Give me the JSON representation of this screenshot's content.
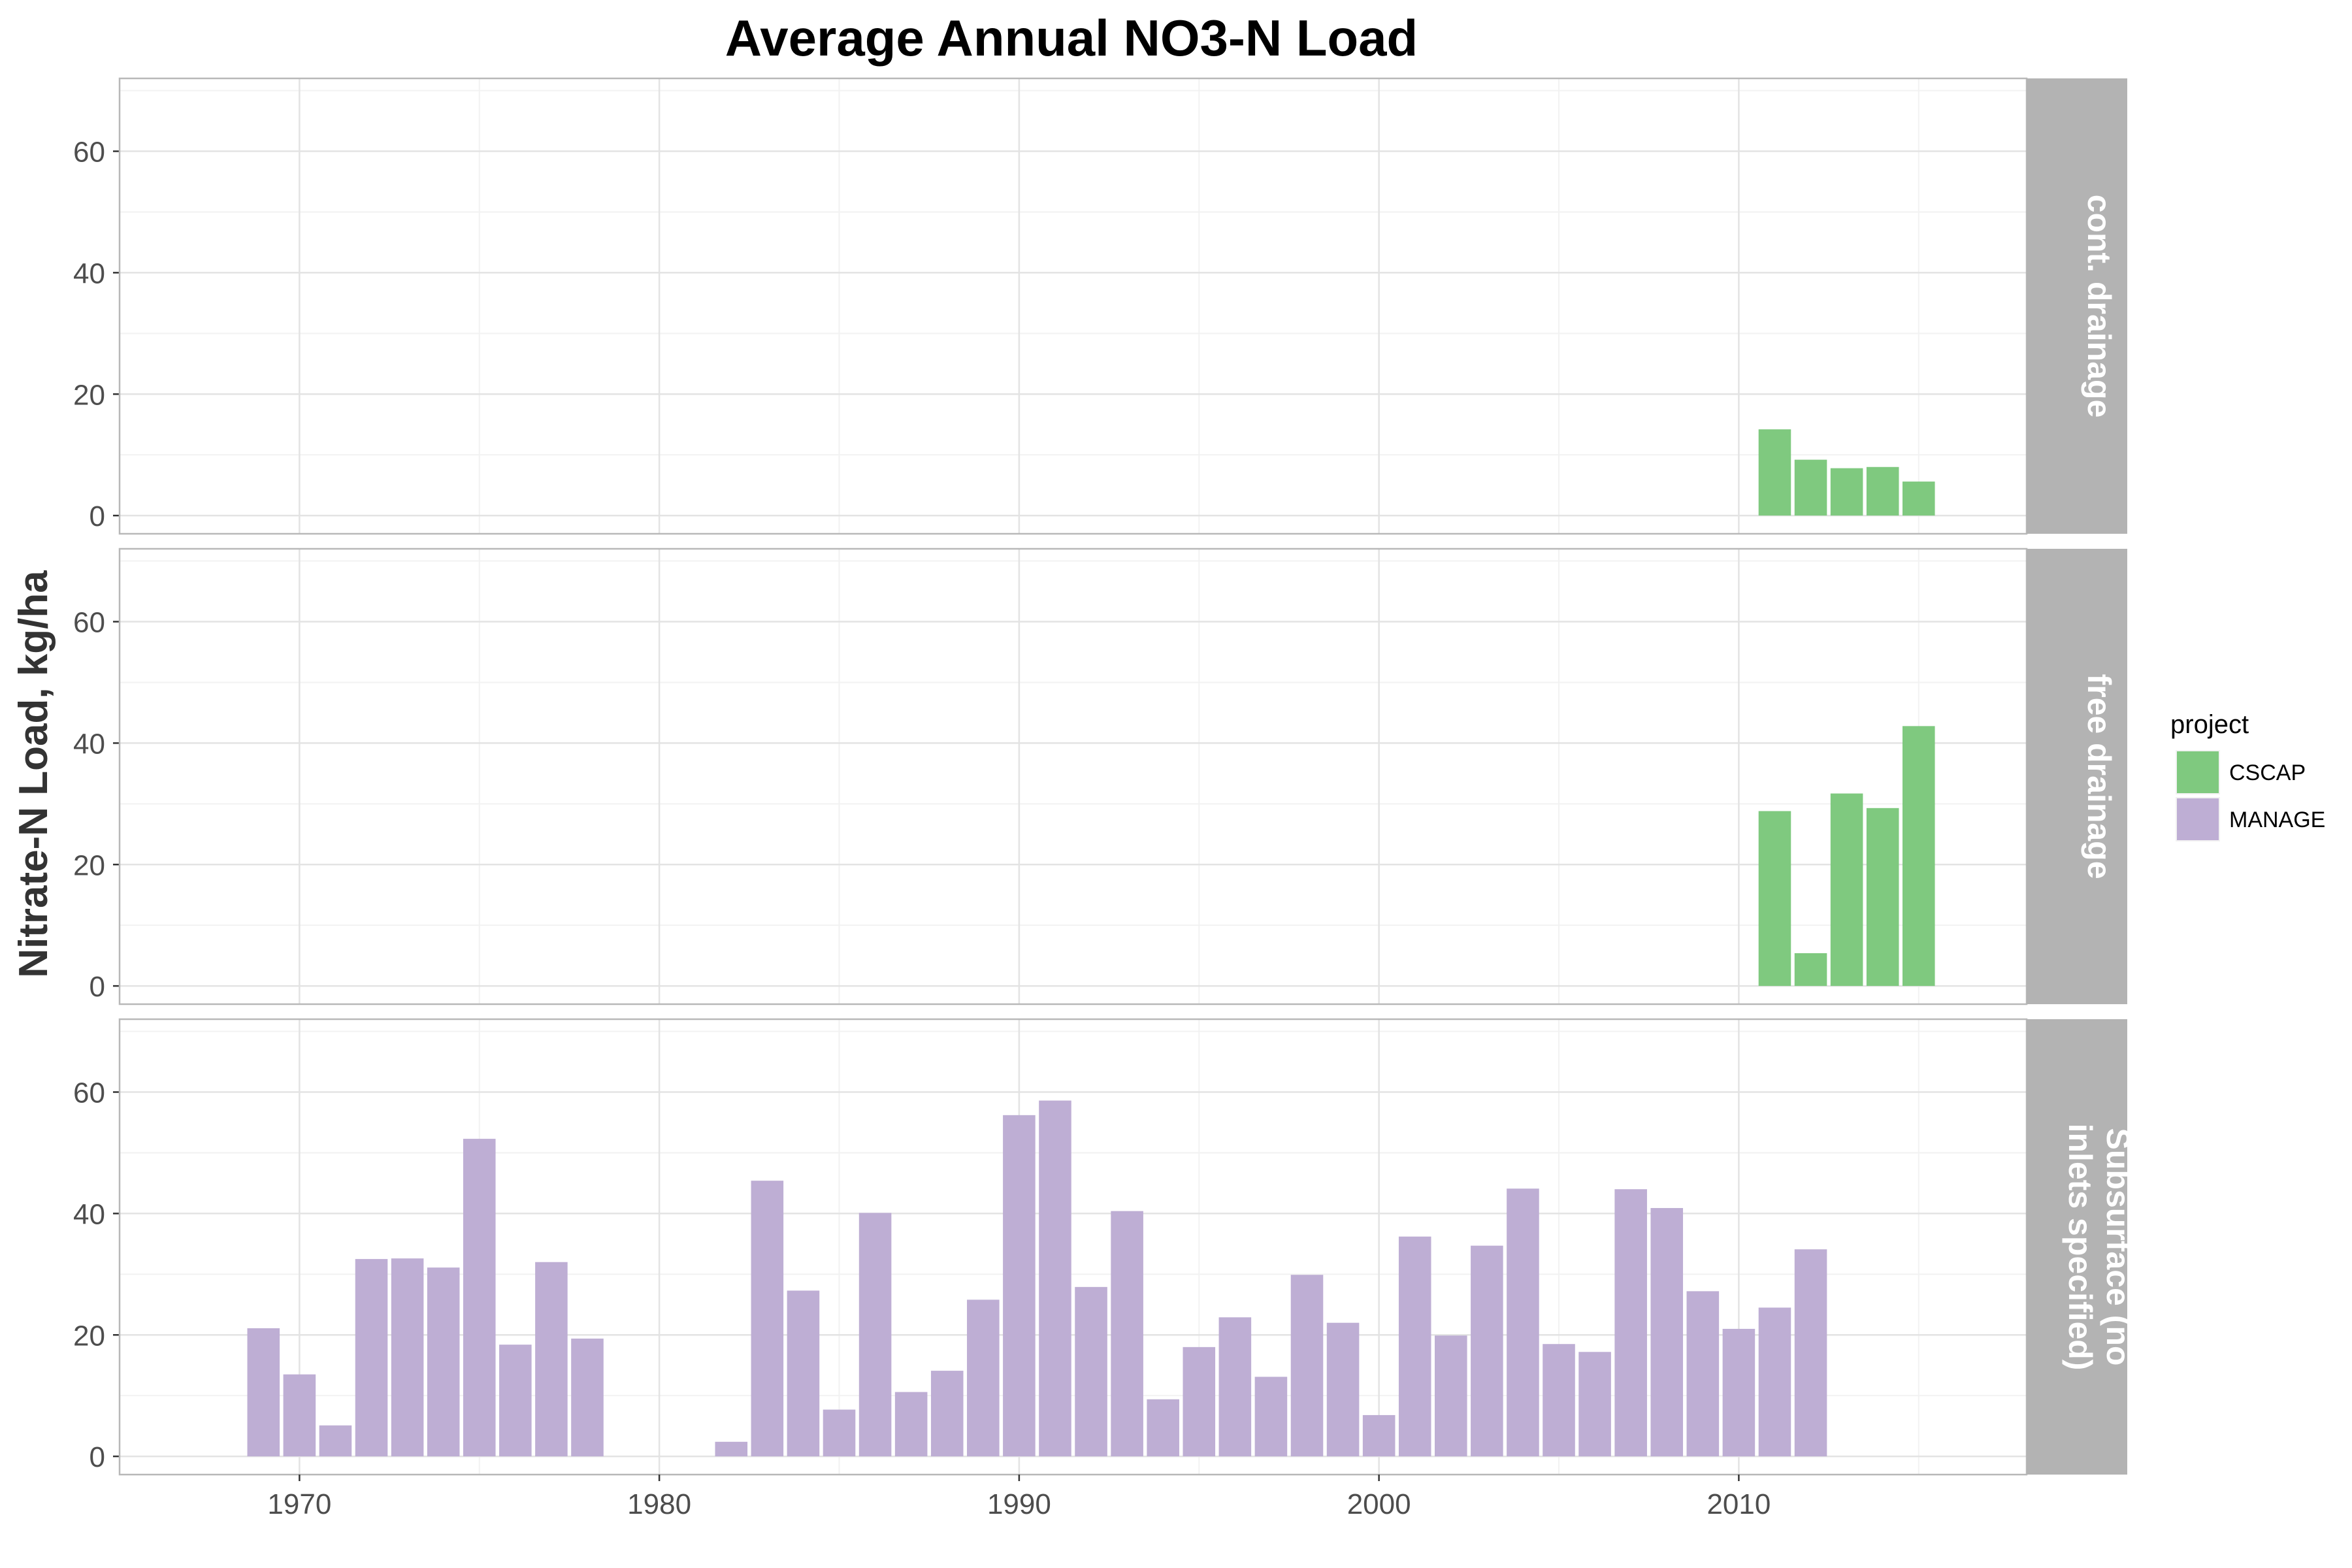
{
  "chart_data": {
    "type": "bar",
    "title": "Average Annual NO3-N Load",
    "xlabel": "",
    "ylabel": "Nitrate-N Load, kg/ha",
    "xlim": [
      1965,
      2018
    ],
    "ylim": [
      -3,
      72
    ],
    "x_ticks": [
      "1970",
      "1980",
      "1990",
      "2000",
      "2010"
    ],
    "y_ticks": [
      "0",
      "20",
      "40",
      "60"
    ],
    "grid": true,
    "legend": {
      "title": "project",
      "position": "right",
      "entries": [
        {
          "name": "CSCAP",
          "color": "#7fc97f"
        },
        {
          "name": "MANAGE",
          "color": "#beaed4"
        }
      ]
    },
    "facets": [
      {
        "label": "cont. drainage",
        "label_lines": [
          "cont. drainage"
        ],
        "series": [
          {
            "name": "CSCAP",
            "x": [
              2011,
              2012,
              2013,
              2014,
              2015
            ],
            "values": [
              14.2,
              9.2,
              7.8,
              8.0,
              5.6
            ]
          }
        ]
      },
      {
        "label": "free drainage",
        "label_lines": [
          "free drainage"
        ],
        "series": [
          {
            "name": "CSCAP",
            "x": [
              2011,
              2012,
              2013,
              2014,
              2015
            ],
            "values": [
              28.8,
              5.4,
              31.7,
              29.3,
              42.8
            ]
          }
        ]
      },
      {
        "label": "Subsurface (no inlets specified)",
        "label_lines": [
          "Subsurface (no",
          "inlets specified)"
        ],
        "series": [
          {
            "name": "MANAGE",
            "x": [
              1969,
              1970,
              1971,
              1972,
              1973,
              1974,
              1975,
              1976,
              1977,
              1978,
              1982,
              1983,
              1984,
              1985,
              1986,
              1987,
              1988,
              1989,
              1990,
              1991,
              1992,
              1993,
              1994,
              1995,
              1996,
              1997,
              1998,
              1999,
              2000,
              2001,
              2002,
              2003,
              2004,
              2005,
              2006,
              2007,
              2008,
              2009,
              2010,
              2011,
              2012
            ],
            "values": [
              21.1,
              13.5,
              5.1,
              32.5,
              32.6,
              31.1,
              52.3,
              18.4,
              32.0,
              19.4,
              2.4,
              45.4,
              27.3,
              7.7,
              40.1,
              10.6,
              14.1,
              25.8,
              56.2,
              58.6,
              27.9,
              40.4,
              9.4,
              18.0,
              22.9,
              13.1,
              29.9,
              22.0,
              6.8,
              36.2,
              19.9,
              34.7,
              44.1,
              18.5,
              17.2,
              44.0,
              40.9,
              27.2,
              21.0,
              24.5,
              34.1
            ]
          }
        ]
      }
    ]
  }
}
